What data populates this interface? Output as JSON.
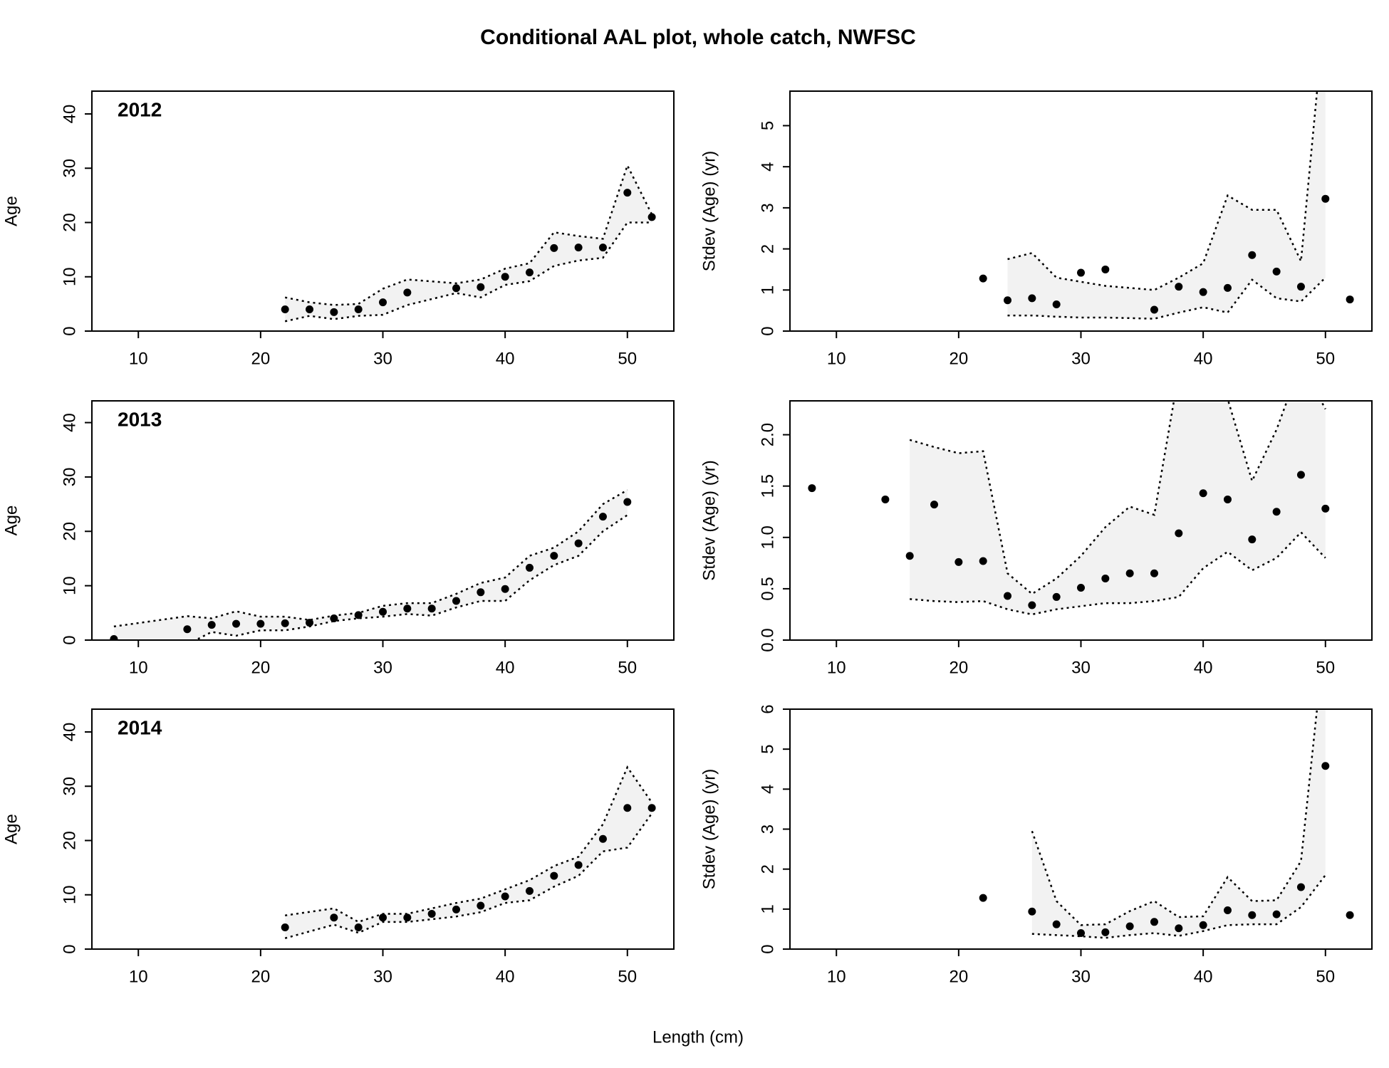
{
  "title": "Conditional AAL plot, whole catch, NWFSC",
  "xlabel": "Length (cm)",
  "chart_data": [
    {
      "type": "scatter",
      "title": "2012",
      "ylabel": "Age",
      "color": "#000000",
      "band_color": "#f2f2f2",
      "xlim": [
        6.2,
        53.8
      ],
      "xticks": [
        10,
        20,
        30,
        40,
        50
      ],
      "ylim": [
        0,
        44.2
      ],
      "yticks": [
        0,
        10,
        20,
        30,
        40
      ],
      "x": [
        22,
        24,
        26,
        28,
        30,
        32,
        36,
        38,
        40,
        42,
        44,
        46,
        48,
        50,
        52
      ],
      "values": [
        4,
        4,
        3.5,
        4,
        5.3,
        7.1,
        7.9,
        8.1,
        10,
        10.8,
        15.3,
        15.4,
        15.4,
        25.5,
        21
      ],
      "upper": [
        6.2,
        5.3,
        4.8,
        5,
        7.8,
        9.5,
        8.8,
        9.5,
        11.5,
        12.5,
        18.2,
        17.5,
        17,
        30.5,
        21.5
      ],
      "lower": [
        1.8,
        2.8,
        2.2,
        2.8,
        3,
        4.8,
        7,
        6.2,
        8.5,
        9.2,
        12,
        13,
        13.5,
        20,
        20
      ]
    },
    {
      "type": "scatter",
      "ylabel": "Stdev (Age) (yr)",
      "color": "#000000",
      "band_color": "#f2f2f2",
      "xlim": [
        6.2,
        53.8
      ],
      "xticks": [
        10,
        20,
        30,
        40,
        50
      ],
      "ylim": [
        0,
        5.84
      ],
      "yticks": [
        0,
        1,
        2,
        3,
        4,
        5
      ],
      "x": [
        22,
        24,
        26,
        28,
        30,
        32,
        36,
        38,
        40,
        42,
        44,
        46,
        48,
        50,
        52
      ],
      "values": [
        1.28,
        0.75,
        0.8,
        0.65,
        1.42,
        1.5,
        0.52,
        1.08,
        0.95,
        1.05,
        1.85,
        1.45,
        1.08,
        3.22,
        0.77
      ],
      "upper": [
        null,
        1.75,
        1.9,
        1.3,
        1.2,
        1.1,
        1.0,
        1.3,
        1.65,
        3.3,
        2.95,
        2.95,
        1.7,
        8,
        null
      ],
      "lower": [
        null,
        0.38,
        0.38,
        0.35,
        0.33,
        0.33,
        0.3,
        0.45,
        0.58,
        0.45,
        1.25,
        0.8,
        0.72,
        1.3,
        null
      ]
    },
    {
      "type": "scatter",
      "title": "2013",
      "ylabel": "Age",
      "color": "#000000",
      "band_color": "#f2f2f2",
      "xlim": [
        6.2,
        53.8
      ],
      "xticks": [
        10,
        20,
        30,
        40,
        50
      ],
      "ylim": [
        0,
        44
      ],
      "yticks": [
        0,
        10,
        20,
        30,
        40
      ],
      "x": [
        8,
        14,
        16,
        18,
        20,
        22,
        24,
        26,
        28,
        30,
        32,
        34,
        36,
        38,
        40,
        42,
        44,
        46,
        48,
        50
      ],
      "values": [
        0.2,
        2,
        2.8,
        3,
        3,
        3.1,
        3.2,
        4,
        4.6,
        5.2,
        5.8,
        5.8,
        7.2,
        8.8,
        9.4,
        13.3,
        15.5,
        17.8,
        22.7,
        25.4
      ],
      "upper": [
        2.5,
        4.4,
        4,
        5.3,
        4.3,
        4.3,
        3.7,
        4.5,
        5,
        6.3,
        6.8,
        6.8,
        8.5,
        10.5,
        11.5,
        15.5,
        17,
        20,
        25,
        27.6
      ],
      "lower": [
        -1.5,
        -0.8,
        1.5,
        0.8,
        1.8,
        1.8,
        2.5,
        3.5,
        4,
        4.3,
        4.8,
        4.5,
        6,
        7.2,
        7.2,
        11,
        13.8,
        15.5,
        20,
        23
      ]
    },
    {
      "type": "scatter",
      "ylabel": "Stdev (Age) (yr)",
      "color": "#000000",
      "band_color": "#f2f2f2",
      "xlim": [
        6.2,
        53.8
      ],
      "xticks": [
        10,
        20,
        30,
        40,
        50
      ],
      "ylim": [
        0,
        2.33
      ],
      "yticks": [
        {
          "value": 0,
          "label": "0.0"
        },
        0.5,
        {
          "value": 1,
          "label": "1.0"
        },
        1.5,
        {
          "value": 2,
          "label": "2.0"
        }
      ],
      "x": [
        8,
        14,
        16,
        18,
        20,
        22,
        24,
        26,
        28,
        30,
        32,
        34,
        36,
        38,
        40,
        42,
        44,
        46,
        48,
        50
      ],
      "values": [
        1.48,
        1.37,
        0.82,
        1.32,
        0.76,
        0.77,
        0.43,
        0.34,
        0.42,
        0.51,
        0.6,
        0.65,
        0.65,
        1.04,
        1.43,
        1.37,
        0.98,
        1.25,
        1.61,
        1.28
      ],
      "upper": [
        null,
        null,
        1.95,
        1.88,
        1.82,
        1.84,
        0.65,
        0.45,
        0.6,
        0.82,
        1.1,
        1.3,
        1.22,
        2.6,
        3.0,
        2.35,
        1.55,
        2.05,
        2.7,
        2.25
      ],
      "lower": [
        null,
        null,
        0.4,
        0.38,
        0.37,
        0.38,
        0.3,
        0.25,
        0.3,
        0.33,
        0.36,
        0.36,
        0.38,
        0.42,
        0.7,
        0.86,
        0.68,
        0.8,
        1.05,
        0.8
      ]
    },
    {
      "type": "scatter",
      "title": "2014",
      "ylabel": "Age",
      "color": "#000000",
      "band_color": "#f2f2f2",
      "xlim": [
        6.2,
        53.8
      ],
      "xticks": [
        10,
        20,
        30,
        40,
        50
      ],
      "ylim": [
        0,
        44.2
      ],
      "yticks": [
        0,
        10,
        20,
        30,
        40
      ],
      "x": [
        22,
        26,
        28,
        30,
        32,
        34,
        36,
        38,
        40,
        42,
        44,
        46,
        48,
        50,
        52
      ],
      "values": [
        4,
        5.8,
        4,
        5.8,
        5.8,
        6.5,
        7.3,
        8,
        9.7,
        10.7,
        13.5,
        15.5,
        20.3,
        26,
        26
      ],
      "upper": [
        6.2,
        7.5,
        5,
        6.5,
        6.5,
        7.5,
        8.5,
        9.3,
        11,
        12.7,
        15.3,
        17,
        23,
        33.5,
        27
      ],
      "lower": [
        2,
        4.5,
        3,
        5,
        5,
        5.5,
        6,
        6.8,
        8.5,
        9,
        11.5,
        13.5,
        18,
        18.7,
        25
      ]
    },
    {
      "type": "scatter",
      "ylabel": "Stdev (Age) (yr)",
      "color": "#000000",
      "band_color": "#f2f2f2",
      "xlim": [
        6.2,
        53.8
      ],
      "xticks": [
        10,
        20,
        30,
        40,
        50
      ],
      "ylim": [
        0,
        6
      ],
      "yticks": [
        0,
        1,
        2,
        3,
        4,
        5,
        6
      ],
      "x": [
        22,
        26,
        28,
        30,
        32,
        34,
        36,
        38,
        40,
        42,
        44,
        46,
        48,
        50,
        52
      ],
      "values": [
        1.28,
        0.94,
        0.62,
        0.4,
        0.42,
        0.57,
        0.68,
        0.52,
        0.6,
        0.97,
        0.85,
        0.87,
        1.55,
        4.58,
        0.85
      ],
      "upper": [
        null,
        2.95,
        1.2,
        0.6,
        0.62,
        0.95,
        1.2,
        0.8,
        0.82,
        1.8,
        1.2,
        1.22,
        2.2,
        8,
        null
      ],
      "lower": [
        null,
        0.38,
        0.35,
        0.32,
        0.28,
        0.35,
        0.4,
        0.33,
        0.45,
        0.6,
        0.62,
        0.62,
        1.05,
        1.85,
        null
      ]
    }
  ]
}
